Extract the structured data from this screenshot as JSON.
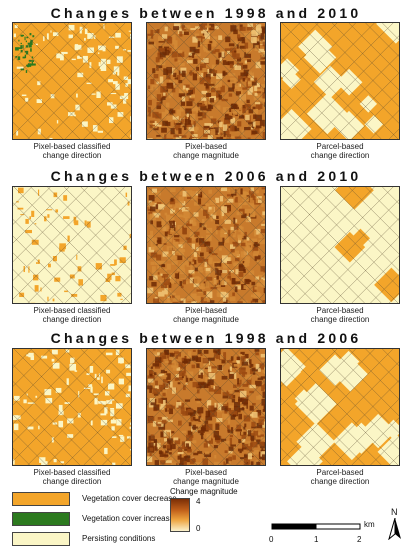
{
  "panels": [
    {
      "title": "Changes between 1998 and 2010"
    },
    {
      "title": "Changes between 2006 and 2010"
    },
    {
      "title": "Changes between 1998 and 2006"
    }
  ],
  "captions": {
    "pixel_classified": [
      "Pixel-based classified",
      "change direction"
    ],
    "pixel_magnitude": [
      "Pixel-based",
      "change magnitude"
    ],
    "parcel_direction": [
      "Parcel-based",
      "change direction"
    ]
  },
  "legend": {
    "items": [
      {
        "label": "Vegetation cover decrease",
        "color": "#f3a52a"
      },
      {
        "label": "Vegetation cover increase",
        "color": "#2c7a1f"
      },
      {
        "label": "Persisting conditions",
        "color": "#fbf6c6"
      }
    ],
    "magnitude": {
      "title": "Change magnitude",
      "max": "4",
      "min": "0"
    }
  },
  "scalebar": {
    "ticks": [
      "0",
      "1",
      "2"
    ],
    "unit": "km"
  },
  "north": "N"
}
